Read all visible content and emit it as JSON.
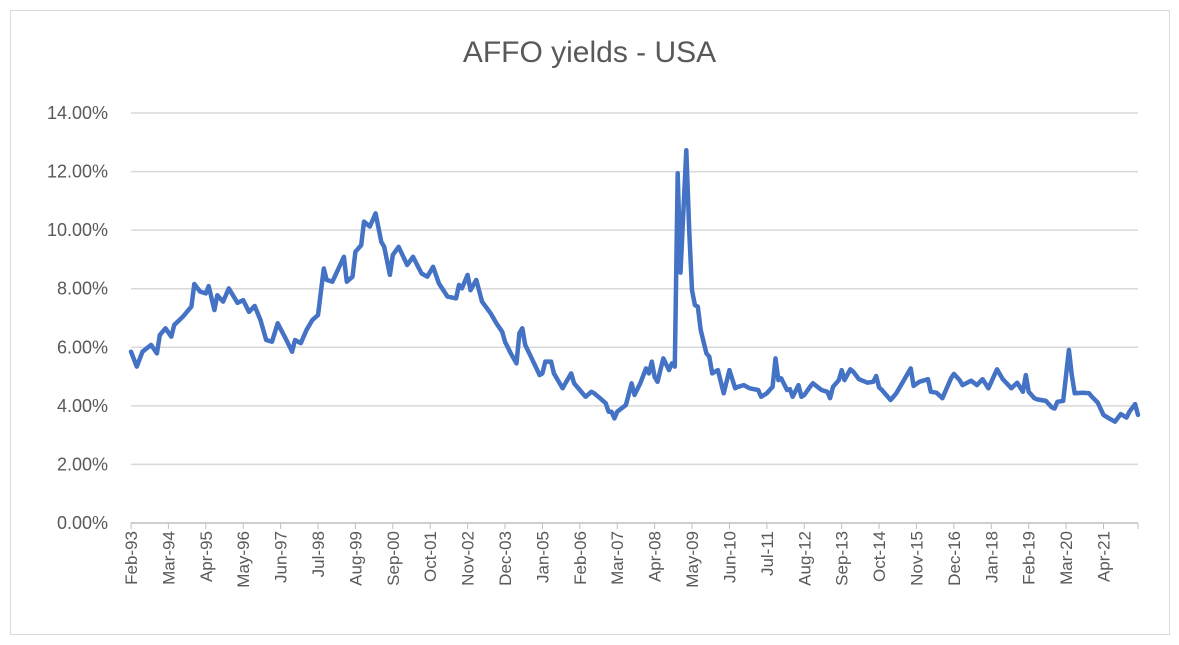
{
  "chart_data": {
    "type": "line",
    "title": "AFFO yields - USA",
    "xlabel": "",
    "ylabel": "",
    "ylim": [
      0,
      14
    ],
    "y_ticks": [
      "0.00%",
      "2.00%",
      "4.00%",
      "6.00%",
      "8.00%",
      "10.00%",
      "12.00%",
      "14.00%"
    ],
    "x_range": [
      "1993-02",
      "2022-04"
    ],
    "x_tick_labels": [
      "Feb-93",
      "Mar-94",
      "Apr-95",
      "May-96",
      "Jun-97",
      "Jul-98",
      "Aug-99",
      "Sep-00",
      "Oct-01",
      "Nov-02",
      "Dec-03",
      "Jan-05",
      "Feb-06",
      "Mar-07",
      "Apr-08",
      "May-09",
      "Jun-10",
      "Jul-11",
      "Aug-12",
      "Sep-13",
      "Oct-14",
      "Nov-15",
      "Dec-16",
      "Jan-18",
      "Feb-19",
      "Mar-20",
      "Apr-21"
    ],
    "grid": "horizontal",
    "legend": "none",
    "line_color": "#4472c4",
    "series": [
      {
        "points": [
          [
            "1993-02",
            5.85
          ],
          [
            "1993-04",
            5.34
          ],
          [
            "1993-06",
            5.85
          ],
          [
            "1993-09",
            6.08
          ],
          [
            "1993-11",
            5.79
          ],
          [
            "1993-12",
            6.42
          ],
          [
            "1994-02",
            6.65
          ],
          [
            "1994-04",
            6.36
          ],
          [
            "1994-05",
            6.76
          ],
          [
            "1994-08",
            7.04
          ],
          [
            "1994-11",
            7.39
          ],
          [
            "1994-12",
            8.16
          ],
          [
            "1995-02",
            7.9
          ],
          [
            "1995-04",
            7.84
          ],
          [
            "1995-05",
            8.09
          ],
          [
            "1995-07",
            7.27
          ],
          [
            "1995-08",
            7.78
          ],
          [
            "1995-10",
            7.56
          ],
          [
            "1995-12",
            8.01
          ],
          [
            "1996-03",
            7.52
          ],
          [
            "1996-05",
            7.61
          ],
          [
            "1996-07",
            7.21
          ],
          [
            "1996-09",
            7.41
          ],
          [
            "1996-11",
            6.93
          ],
          [
            "1997-01",
            6.25
          ],
          [
            "1997-03",
            6.19
          ],
          [
            "1997-05",
            6.82
          ],
          [
            "1997-08",
            6.25
          ],
          [
            "1997-10",
            5.85
          ],
          [
            "1997-11",
            6.25
          ],
          [
            "1998-01",
            6.14
          ],
          [
            "1998-03",
            6.59
          ],
          [
            "1998-05",
            6.93
          ],
          [
            "1998-07",
            7.1
          ],
          [
            "1998-09",
            8.69
          ],
          [
            "1998-10",
            8.3
          ],
          [
            "1998-12",
            8.24
          ],
          [
            "1999-04",
            9.09
          ],
          [
            "1999-05",
            8.24
          ],
          [
            "1999-07",
            8.41
          ],
          [
            "1999-08",
            9.26
          ],
          [
            "1999-10",
            9.49
          ],
          [
            "1999-11",
            10.29
          ],
          [
            "2000-01",
            10.12
          ],
          [
            "2000-03",
            10.57
          ],
          [
            "2000-05",
            9.6
          ],
          [
            "2000-06",
            9.43
          ],
          [
            "2000-08",
            8.47
          ],
          [
            "2000-09",
            9.15
          ],
          [
            "2000-11",
            9.43
          ],
          [
            "2001-02",
            8.81
          ],
          [
            "2001-04",
            9.09
          ],
          [
            "2001-07",
            8.52
          ],
          [
            "2001-09",
            8.41
          ],
          [
            "2001-11",
            8.75
          ],
          [
            "2002-01",
            8.18
          ],
          [
            "2002-04",
            7.73
          ],
          [
            "2002-07",
            7.67
          ],
          [
            "2002-08",
            8.13
          ],
          [
            "2002-09",
            8.01
          ],
          [
            "2002-11",
            8.47
          ],
          [
            "2002-12",
            7.95
          ],
          [
            "2003-02",
            8.3
          ],
          [
            "2003-04",
            7.56
          ],
          [
            "2003-07",
            7.16
          ],
          [
            "2003-09",
            6.82
          ],
          [
            "2003-11",
            6.53
          ],
          [
            "2003-12",
            6.19
          ],
          [
            "2004-02",
            5.79
          ],
          [
            "2004-04",
            5.45
          ],
          [
            "2004-05",
            6.48
          ],
          [
            "2004-06",
            6.65
          ],
          [
            "2004-07",
            6.08
          ],
          [
            "2004-09",
            5.68
          ],
          [
            "2004-12",
            5.05
          ],
          [
            "2005-01",
            5.11
          ],
          [
            "2005-02",
            5.51
          ],
          [
            "2005-04",
            5.51
          ],
          [
            "2005-05",
            5.11
          ],
          [
            "2005-08",
            4.6
          ],
          [
            "2005-09",
            4.77
          ],
          [
            "2005-11",
            5.11
          ],
          [
            "2005-12",
            4.77
          ],
          [
            "2006-02",
            4.54
          ],
          [
            "2006-04",
            4.31
          ],
          [
            "2006-06",
            4.48
          ],
          [
            "2006-07",
            4.43
          ],
          [
            "2006-09",
            4.26
          ],
          [
            "2006-11",
            4.09
          ],
          [
            "2006-12",
            3.8
          ],
          [
            "2007-01",
            3.8
          ],
          [
            "2007-02",
            3.57
          ],
          [
            "2007-03",
            3.8
          ],
          [
            "2007-06",
            4.03
          ],
          [
            "2007-08",
            4.77
          ],
          [
            "2007-09",
            4.37
          ],
          [
            "2007-11",
            4.77
          ],
          [
            "2008-01",
            5.28
          ],
          [
            "2008-02",
            5.11
          ],
          [
            "2008-03",
            5.51
          ],
          [
            "2008-04",
            4.99
          ],
          [
            "2008-05",
            4.82
          ],
          [
            "2008-07",
            5.62
          ],
          [
            "2008-09",
            5.22
          ],
          [
            "2008-10",
            5.45
          ],
          [
            "2008-11",
            5.34
          ],
          [
            "2008-12",
            11.94
          ],
          [
            "2009-01",
            8.55
          ],
          [
            "2009-03",
            12.73
          ],
          [
            "2009-04",
            10.0
          ],
          [
            "2009-05",
            7.95
          ],
          [
            "2009-06",
            7.44
          ],
          [
            "2009-07",
            7.39
          ],
          [
            "2009-08",
            6.59
          ],
          [
            "2009-10",
            5.79
          ],
          [
            "2009-11",
            5.68
          ],
          [
            "2009-12",
            5.11
          ],
          [
            "2010-02",
            5.22
          ],
          [
            "2010-04",
            4.43
          ],
          [
            "2010-06",
            5.22
          ],
          [
            "2010-08",
            4.6
          ],
          [
            "2010-09",
            4.65
          ],
          [
            "2010-11",
            4.71
          ],
          [
            "2011-01",
            4.6
          ],
          [
            "2011-04",
            4.54
          ],
          [
            "2011-05",
            4.31
          ],
          [
            "2011-07",
            4.43
          ],
          [
            "2011-09",
            4.65
          ],
          [
            "2011-10",
            5.62
          ],
          [
            "2011-11",
            4.88
          ],
          [
            "2011-12",
            4.94
          ],
          [
            "2012-02",
            4.54
          ],
          [
            "2012-03",
            4.57
          ],
          [
            "2012-04",
            4.31
          ],
          [
            "2012-06",
            4.71
          ],
          [
            "2012-07",
            4.31
          ],
          [
            "2012-08",
            4.37
          ],
          [
            "2012-10",
            4.65
          ],
          [
            "2012-11",
            4.77
          ],
          [
            "2013-02",
            4.54
          ],
          [
            "2013-04",
            4.48
          ],
          [
            "2013-05",
            4.26
          ],
          [
            "2013-06",
            4.65
          ],
          [
            "2013-08",
            4.88
          ],
          [
            "2013-09",
            5.22
          ],
          [
            "2013-10",
            4.88
          ],
          [
            "2013-12",
            5.25
          ],
          [
            "2014-01",
            5.17
          ],
          [
            "2014-03",
            4.91
          ],
          [
            "2014-06",
            4.79
          ],
          [
            "2014-08",
            4.82
          ],
          [
            "2014-09",
            5.02
          ],
          [
            "2014-10",
            4.63
          ],
          [
            "2014-11",
            4.54
          ],
          [
            "2015-02",
            4.2
          ],
          [
            "2015-04",
            4.43
          ],
          [
            "2015-06",
            4.77
          ],
          [
            "2015-07",
            4.94
          ],
          [
            "2015-09",
            5.28
          ],
          [
            "2015-10",
            4.68
          ],
          [
            "2015-12",
            4.82
          ],
          [
            "2016-03",
            4.91
          ],
          [
            "2016-04",
            4.48
          ],
          [
            "2016-06",
            4.45
          ],
          [
            "2016-08",
            4.26
          ],
          [
            "2016-11",
            4.94
          ],
          [
            "2016-12",
            5.09
          ],
          [
            "2017-02",
            4.88
          ],
          [
            "2017-03",
            4.71
          ],
          [
            "2017-06",
            4.86
          ],
          [
            "2017-08",
            4.71
          ],
          [
            "2017-10",
            4.91
          ],
          [
            "2017-12",
            4.6
          ],
          [
            "2018-03",
            5.25
          ],
          [
            "2018-05",
            4.91
          ],
          [
            "2018-08",
            4.6
          ],
          [
            "2018-10",
            4.79
          ],
          [
            "2018-12",
            4.48
          ],
          [
            "2019-01",
            5.05
          ],
          [
            "2019-02",
            4.48
          ],
          [
            "2019-04",
            4.26
          ],
          [
            "2019-05",
            4.22
          ],
          [
            "2019-08",
            4.17
          ],
          [
            "2019-10",
            3.95
          ],
          [
            "2019-11",
            3.91
          ],
          [
            "2019-12",
            4.14
          ],
          [
            "2020-02",
            4.17
          ],
          [
            "2020-04",
            5.91
          ],
          [
            "2020-05",
            5.05
          ],
          [
            "2020-06",
            4.43
          ],
          [
            "2020-09",
            4.45
          ],
          [
            "2020-11",
            4.43
          ],
          [
            "2020-12",
            4.31
          ],
          [
            "2021-02",
            4.11
          ],
          [
            "2021-04",
            3.69
          ],
          [
            "2021-06",
            3.57
          ],
          [
            "2021-08",
            3.46
          ],
          [
            "2021-10",
            3.72
          ],
          [
            "2021-12",
            3.6
          ],
          [
            "2022-01",
            3.8
          ],
          [
            "2022-03",
            4.06
          ],
          [
            "2022-04",
            3.69
          ]
        ]
      }
    ]
  }
}
